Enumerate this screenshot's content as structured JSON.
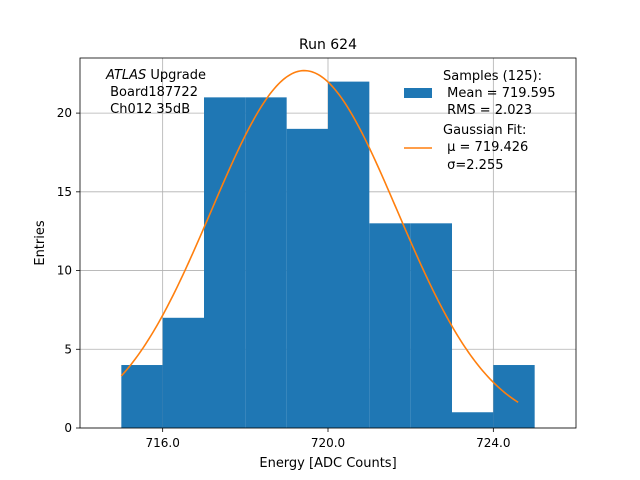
{
  "chart_data": {
    "type": "bar",
    "title": "Run 624",
    "xlabel": "Energy [ADC Counts]",
    "ylabel": "Entries",
    "xlim": [
      714,
      726
    ],
    "ylim": [
      0,
      23.5
    ],
    "xticks": [
      716.0,
      720.0,
      724.0
    ],
    "xtick_labels": [
      "716.0",
      "720.0",
      "724.0"
    ],
    "yticks": [
      0,
      5,
      10,
      15,
      20
    ],
    "ytick_labels": [
      "0",
      "5",
      "10",
      "15",
      "20"
    ],
    "grid": true,
    "histogram": {
      "name": "Samples (125):",
      "color": "#1f77b4",
      "bins": [
        {
          "x0": 715,
          "x1": 716,
          "value": 4
        },
        {
          "x0": 716,
          "x1": 717,
          "value": 7
        },
        {
          "x0": 717,
          "x1": 718,
          "value": 21
        },
        {
          "x0": 718,
          "x1": 719,
          "value": 21
        },
        {
          "x0": 719,
          "x1": 720,
          "value": 19
        },
        {
          "x0": 720,
          "x1": 721,
          "value": 22
        },
        {
          "x0": 721,
          "x1": 722,
          "value": 13
        },
        {
          "x0": 722,
          "x1": 723,
          "value": 13
        },
        {
          "x0": 723,
          "x1": 724,
          "value": 1
        },
        {
          "x0": 724,
          "x1": 725,
          "value": 4
        }
      ]
    },
    "fit": {
      "name": "Gaussian Fit:",
      "color": "#ff7f0e",
      "mu": 719.426,
      "sigma": 2.255,
      "amplitude": 22.7,
      "x_range": [
        715,
        724.6
      ]
    },
    "annotation": {
      "italic_part": "ATLAS",
      "line1_rest": " Upgrade",
      "line2": " Board187722",
      "line3": " Ch012 35dB"
    },
    "legend": {
      "placement": "top-right",
      "hist_lines": [
        "Samples (125):",
        " Mean = 719.595",
        " RMS = 2.023"
      ],
      "fit_lines": [
        "Gaussian Fit:",
        " μ = 719.426",
        " σ=2.255"
      ]
    }
  }
}
